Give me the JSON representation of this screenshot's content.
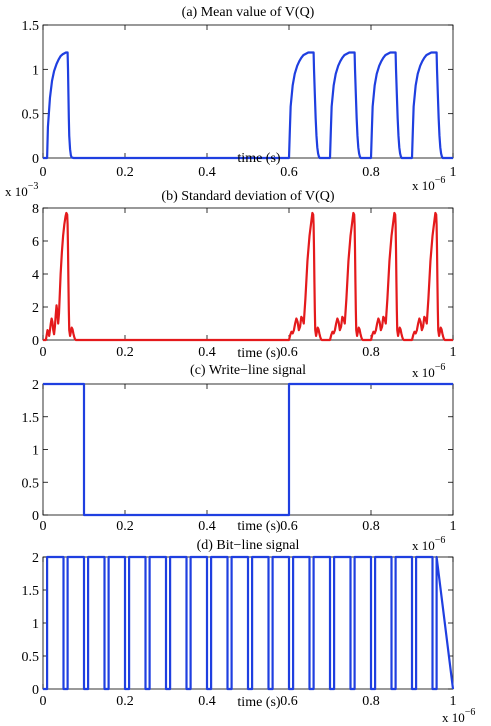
{
  "figure": {
    "x_tick_labels": [
      "0",
      "0.2",
      "0.4",
      "0.6",
      "0.8",
      "1"
    ],
    "x_axis_label": "time (s)",
    "x_multiplier_base": "x 10",
    "x_multiplier_exp": "−6"
  },
  "chart_data": [
    {
      "type": "line",
      "title": "(a) Mean value of V(Q)",
      "xlabel": "time (s)",
      "ylabel": "",
      "x_unit_multiplier": "x 10^-6",
      "xlim": [
        0,
        1
      ],
      "ylim": [
        0,
        1.5
      ],
      "yticks": [
        0,
        0.5,
        1,
        1.5
      ],
      "ytick_labels": [
        "0",
        "0.5",
        "1",
        "1.5"
      ],
      "y_multiplier_base": "",
      "y_multiplier_exp": "",
      "series_color": "#1f3fe0",
      "series": [
        {
          "x": [
            0,
            0.01,
            0.012,
            0.017,
            0.022,
            0.027,
            0.033,
            0.038,
            0.043,
            0.048,
            0.052,
            0.056,
            0.059,
            0.06,
            0.061,
            0.062,
            0.063,
            0.064,
            0.066,
            0.068,
            0.07,
            0.075,
            0.6,
            0.602,
            0.604,
            0.609,
            0.614,
            0.62,
            0.625,
            0.63,
            0.635,
            0.639,
            0.643,
            0.647,
            0.651,
            0.655,
            0.657,
            0.659,
            0.66,
            0.661,
            0.663,
            0.665,
            0.667,
            0.669,
            0.671,
            0.673,
            0.675,
            0.7,
            0.7,
            0.702,
            0.704,
            0.709,
            0.714,
            0.72,
            0.725,
            0.73,
            0.735,
            0.739,
            0.743,
            0.747,
            0.751,
            0.755,
            0.757,
            0.759,
            0.76,
            0.761,
            0.763,
            0.765,
            0.767,
            0.769,
            0.771,
            0.773,
            0.775,
            0.8,
            0.8,
            0.802,
            0.804,
            0.809,
            0.814,
            0.82,
            0.825,
            0.83,
            0.835,
            0.839,
            0.843,
            0.847,
            0.851,
            0.855,
            0.857,
            0.859,
            0.86,
            0.861,
            0.863,
            0.865,
            0.867,
            0.869,
            0.871,
            0.873,
            0.875,
            0.9,
            0.9,
            0.902,
            0.904,
            0.909,
            0.914,
            0.92,
            0.925,
            0.93,
            0.935,
            0.939,
            0.943,
            0.947,
            0.951,
            0.955,
            0.957,
            0.959,
            0.96,
            0.961,
            0.963,
            0.965,
            0.967,
            0.969,
            0.971,
            0.973,
            0.975,
            1.0
          ],
          "y": [
            0,
            0,
            0.35,
            0.68,
            0.87,
            0.98,
            1.06,
            1.11,
            1.15,
            1.17,
            1.18,
            1.19,
            1.19,
            1.19,
            1.0,
            0.72,
            0.45,
            0.25,
            0.1,
            0.03,
            0.005,
            0,
            0,
            0.3,
            0.58,
            0.82,
            0.95,
            1.04,
            1.09,
            1.13,
            1.16,
            1.17,
            1.18,
            1.19,
            1.19,
            1.19,
            1.19,
            1.19,
            1.19,
            1.0,
            0.72,
            0.45,
            0.25,
            0.12,
            0.05,
            0.015,
            0,
            0,
            0,
            0.3,
            0.58,
            0.82,
            0.95,
            1.04,
            1.09,
            1.13,
            1.16,
            1.17,
            1.18,
            1.19,
            1.19,
            1.19,
            1.19,
            1.19,
            1.19,
            1.0,
            0.72,
            0.45,
            0.25,
            0.12,
            0.05,
            0.015,
            0,
            0,
            0,
            0.3,
            0.58,
            0.82,
            0.95,
            1.04,
            1.09,
            1.13,
            1.16,
            1.17,
            1.18,
            1.19,
            1.19,
            1.19,
            1.19,
            1.19,
            1.19,
            1.0,
            0.72,
            0.45,
            0.25,
            0.12,
            0.05,
            0.015,
            0,
            0,
            0,
            0.3,
            0.58,
            0.82,
            0.95,
            1.04,
            1.09,
            1.13,
            1.16,
            1.17,
            1.18,
            1.19,
            1.19,
            1.19,
            1.19,
            1.19,
            1.19,
            1.0,
            0.72,
            0.45,
            0.25,
            0.12,
            0.05,
            0.015,
            0,
            0
          ]
        }
      ]
    },
    {
      "type": "line",
      "title": "(b) Standard deviation of V(Q)",
      "xlabel": "time (s)",
      "ylabel": "",
      "x_unit_multiplier": "x 10^-6",
      "y_unit_multiplier": "x 10^-3",
      "xlim": [
        0,
        1
      ],
      "ylim": [
        0,
        8
      ],
      "yticks": [
        0,
        2,
        4,
        6,
        8
      ],
      "ytick_labels": [
        "0",
        "2",
        "4",
        "6",
        "8"
      ],
      "y_multiplier_base": "x 10",
      "y_multiplier_exp": "−3",
      "series_color": "#e41a1c",
      "series": [
        {
          "x": [
            0,
            0.007,
            0.009,
            0.011,
            0.013,
            0.015,
            0.017,
            0.019,
            0.021,
            0.023,
            0.025,
            0.027,
            0.029,
            0.031,
            0.033,
            0.035,
            0.037,
            0.039,
            0.041,
            0.043,
            0.046,
            0.049,
            0.052,
            0.055,
            0.057,
            0.059,
            0.06,
            0.061,
            0.062,
            0.063,
            0.064,
            0.066,
            0.068,
            0.07,
            0.072,
            0.074,
            0.076,
            0.078,
            0.08,
            0.082,
            0.6,
            0.603,
            0.606,
            0.609,
            0.612,
            0.615,
            0.618,
            0.621,
            0.624,
            0.627,
            0.63,
            0.633,
            0.636,
            0.64,
            0.645,
            0.65,
            0.655,
            0.657,
            0.659,
            0.66,
            0.661,
            0.662,
            0.663,
            0.664,
            0.666,
            0.668,
            0.67,
            0.672,
            0.674,
            0.676,
            0.678,
            0.68,
            0.682,
            0.7,
            0.7,
            0.703,
            0.706,
            0.709,
            0.712,
            0.715,
            0.718,
            0.721,
            0.724,
            0.727,
            0.73,
            0.733,
            0.736,
            0.74,
            0.745,
            0.75,
            0.755,
            0.757,
            0.759,
            0.76,
            0.761,
            0.762,
            0.763,
            0.764,
            0.766,
            0.768,
            0.77,
            0.772,
            0.774,
            0.776,
            0.778,
            0.78,
            0.782,
            0.8,
            0.8,
            0.803,
            0.806,
            0.809,
            0.812,
            0.815,
            0.818,
            0.821,
            0.824,
            0.827,
            0.83,
            0.833,
            0.836,
            0.84,
            0.845,
            0.85,
            0.855,
            0.857,
            0.859,
            0.86,
            0.861,
            0.862,
            0.863,
            0.864,
            0.866,
            0.868,
            0.87,
            0.872,
            0.874,
            0.876,
            0.878,
            0.88,
            0.882,
            0.9,
            0.9,
            0.903,
            0.906,
            0.909,
            0.912,
            0.915,
            0.918,
            0.921,
            0.924,
            0.927,
            0.93,
            0.933,
            0.936,
            0.94,
            0.945,
            0.95,
            0.955,
            0.957,
            0.959,
            0.96,
            0.961,
            0.962,
            0.963,
            0.964,
            0.966,
            0.968,
            0.97,
            0.972,
            0.974,
            0.976,
            0.978,
            0.98,
            0.982,
            1.0
          ],
          "y": [
            0,
            0,
            0.3,
            0.6,
            0.5,
            0.25,
            0.6,
            1.0,
            1.3,
            1.1,
            0.6,
            0.35,
            0.8,
            1.5,
            2.1,
            1.7,
            1.0,
            1.6,
            2.8,
            4.0,
            5.3,
            6.3,
            7.0,
            7.5,
            7.7,
            7.6,
            7.0,
            5.5,
            3.5,
            1.8,
            0.6,
            0.25,
            0.5,
            0.75,
            0.65,
            0.4,
            0.2,
            0.05,
            0,
            0,
            0,
            0.3,
            0.5,
            0.4,
            0.6,
            1.0,
            1.3,
            1.1,
            0.6,
            0.8,
            1.4,
            1.3,
            1.0,
            2.5,
            4.8,
            6.3,
            7.3,
            7.7,
            7.6,
            7.0,
            5.5,
            3.5,
            1.8,
            0.6,
            0.25,
            0.5,
            0.75,
            0.65,
            0.4,
            0.2,
            0.05,
            0,
            0,
            0,
            0,
            0.3,
            0.5,
            0.4,
            0.6,
            1.0,
            1.3,
            1.1,
            0.6,
            0.8,
            1.4,
            1.3,
            1.0,
            2.5,
            4.8,
            6.3,
            7.3,
            7.7,
            7.6,
            7.0,
            5.5,
            3.5,
            1.8,
            0.6,
            0.25,
            0.5,
            0.75,
            0.65,
            0.4,
            0.2,
            0.05,
            0,
            0,
            0,
            0,
            0.3,
            0.5,
            0.4,
            0.6,
            1.0,
            1.3,
            1.1,
            0.6,
            0.8,
            1.4,
            1.3,
            1.0,
            2.5,
            4.8,
            6.3,
            7.3,
            7.7,
            7.6,
            7.0,
            5.5,
            3.5,
            1.8,
            0.6,
            0.25,
            0.5,
            0.75,
            0.65,
            0.4,
            0.2,
            0.05,
            0,
            0,
            0,
            0,
            0.3,
            0.5,
            0.4,
            0.6,
            1.0,
            1.3,
            1.1,
            0.6,
            0.8,
            1.4,
            1.3,
            1.0,
            2.5,
            4.8,
            6.3,
            7.3,
            7.7,
            7.6,
            7.0,
            5.5,
            3.5,
            1.8,
            0.6,
            0.25,
            0.5,
            0.75,
            0.65,
            0.4,
            0.2,
            0.05,
            0,
            0,
            0
          ]
        }
      ]
    },
    {
      "type": "line",
      "title": "(c) Write−line signal",
      "xlabel": "time (s)",
      "ylabel": "",
      "x_unit_multiplier": "x 10^-6",
      "xlim": [
        0,
        1
      ],
      "ylim": [
        0,
        2
      ],
      "yticks": [
        0,
        0.5,
        1,
        1.5,
        2
      ],
      "ytick_labels": [
        "0",
        "0.5",
        "1",
        "1.5",
        "2"
      ],
      "y_multiplier_base": "",
      "y_multiplier_exp": "",
      "series_color": "#1f3fe0",
      "series": [
        {
          "x": [
            0,
            0.1,
            0.1,
            0.6,
            0.6,
            1.0
          ],
          "y": [
            2,
            2,
            0,
            0,
            2,
            2
          ]
        }
      ]
    },
    {
      "type": "line",
      "title": "(d) Bit−line signal",
      "xlabel": "time (s)",
      "ylabel": "",
      "x_unit_multiplier": "x 10^-6",
      "xlim": [
        0,
        1
      ],
      "ylim": [
        0,
        2
      ],
      "yticks": [
        0,
        0.5,
        1,
        1.5,
        2
      ],
      "ytick_labels": [
        "0",
        "0.5",
        "1",
        "1.5",
        "2"
      ],
      "y_multiplier_base": "",
      "y_multiplier_exp": "",
      "series_color": "#1f3fe0",
      "series": [
        {
          "x": [
            0,
            0.01,
            0.01,
            0.05,
            0.05,
            0.06,
            0.06,
            0.1,
            0.1,
            0.11,
            0.11,
            0.15,
            0.15,
            0.16,
            0.16,
            0.2,
            0.2,
            0.21,
            0.21,
            0.25,
            0.25,
            0.26,
            0.26,
            0.3,
            0.3,
            0.31,
            0.31,
            0.35,
            0.35,
            0.36,
            0.36,
            0.4,
            0.4,
            0.41,
            0.41,
            0.45,
            0.45,
            0.46,
            0.46,
            0.5,
            0.5,
            0.51,
            0.51,
            0.55,
            0.55,
            0.56,
            0.56,
            0.6,
            0.6,
            0.61,
            0.61,
            0.65,
            0.65,
            0.66,
            0.66,
            0.7,
            0.7,
            0.71,
            0.71,
            0.75,
            0.75,
            0.76,
            0.76,
            0.8,
            0.8,
            0.81,
            0.81,
            0.85,
            0.85,
            0.86,
            0.86,
            0.9,
            0.9,
            0.91,
            0.91,
            0.95,
            0.95,
            0.96,
            0.96,
            1.0
          ],
          "y": [
            0,
            0,
            2,
            2,
            0,
            0,
            2,
            2,
            0,
            0,
            2,
            2,
            0,
            0,
            2,
            2,
            0,
            0,
            2,
            2,
            0,
            0,
            2,
            2,
            0,
            0,
            2,
            2,
            0,
            0,
            2,
            2,
            0,
            0,
            2,
            2,
            0,
            0,
            2,
            2,
            0,
            0,
            2,
            2,
            0,
            0,
            2,
            2,
            0,
            0,
            2,
            2,
            0,
            0,
            2,
            2,
            0,
            0,
            2,
            2,
            0,
            0,
            2,
            2,
            0,
            0,
            2,
            2,
            0,
            0,
            2,
            2,
            0,
            0,
            2,
            2,
            0,
            0,
            2,
            0
          ]
        }
      ]
    }
  ]
}
